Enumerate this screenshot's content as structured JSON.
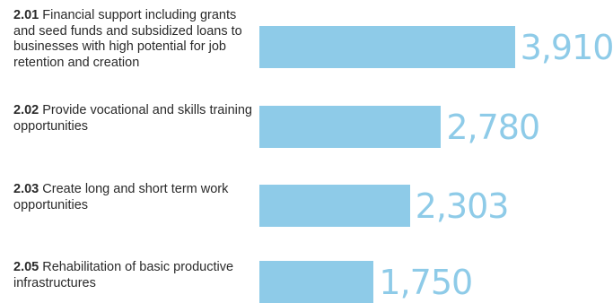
{
  "chart_data": {
    "type": "bar",
    "orientation": "horizontal",
    "categories": [
      {
        "code": "2.01",
        "text": "Financial support including grants and seed funds and subsidized loans to businesses with high potential for job retention and creation"
      },
      {
        "code": "2.02",
        "text": "Provide vocational and skills training opportunities"
      },
      {
        "code": "2.03",
        "text": "Create long and short term work opportunities"
      },
      {
        "code": "2.05",
        "text": "Rehabilitation of basic productive infrastructures"
      }
    ],
    "values": [
      3910,
      2780,
      2303,
      1750
    ],
    "value_labels": [
      "3,910",
      "2,780",
      "2,303",
      "1,750"
    ],
    "title": "",
    "xlabel": "",
    "ylabel": "",
    "grid": false,
    "legend": "none"
  },
  "colors": {
    "bar": "#8ecbe8",
    "value_label": "#8ecbe8",
    "text": "#2a2a2a"
  }
}
